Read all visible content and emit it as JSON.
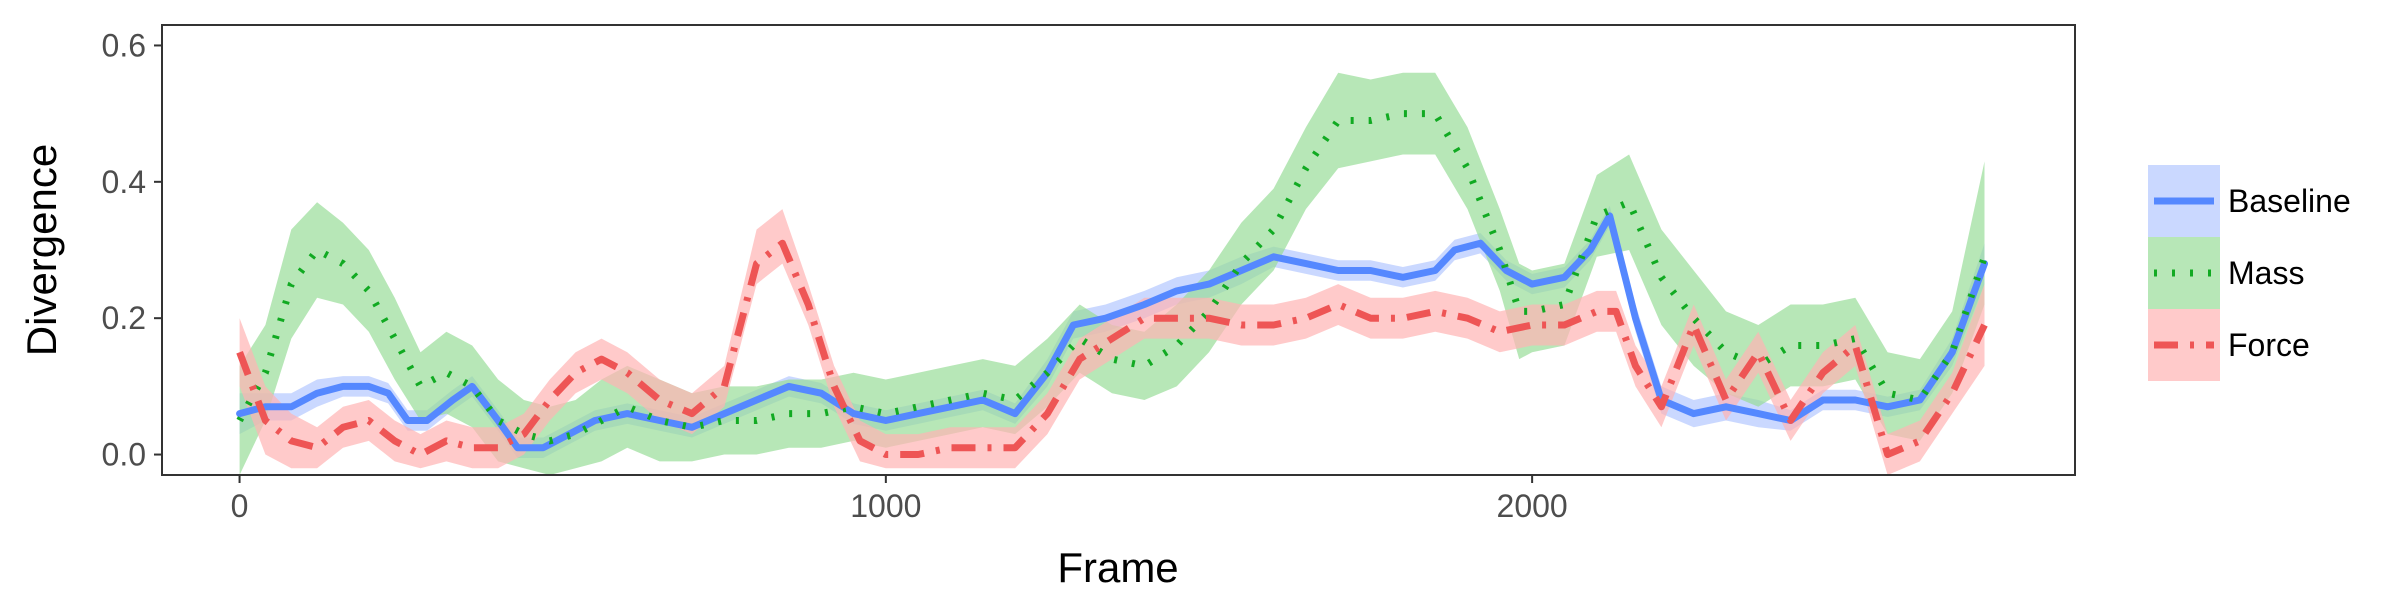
{
  "chart_data": {
    "type": "line",
    "title": "",
    "xlabel": "Frame",
    "ylabel": "Divergence",
    "xlim": [
      -120,
      2840
    ],
    "ylim": [
      -0.03,
      0.63
    ],
    "xticks": [
      0,
      1000,
      2000
    ],
    "xtick_labels": [
      "0",
      "1000",
      "2000"
    ],
    "yticks": [
      0.0,
      0.2,
      0.4,
      0.6
    ],
    "ytick_labels": [
      "0.0",
      "0.2",
      "0.4",
      "0.6"
    ],
    "grid": false,
    "legend_position": "right",
    "series": [
      {
        "name": "Baseline",
        "color": "#5588ff",
        "band_color": "#b3c8ff",
        "line_style": "solid",
        "points": [
          [
            0,
            0.06
          ],
          [
            40,
            0.07
          ],
          [
            80,
            0.07
          ],
          [
            120,
            0.09
          ],
          [
            160,
            0.1
          ],
          [
            200,
            0.1
          ],
          [
            230,
            0.09
          ],
          [
            260,
            0.05
          ],
          [
            290,
            0.05
          ],
          [
            330,
            0.08
          ],
          [
            360,
            0.1
          ],
          [
            400,
            0.05
          ],
          [
            430,
            0.01
          ],
          [
            470,
            0.01
          ],
          [
            510,
            0.03
          ],
          [
            550,
            0.05
          ],
          [
            600,
            0.06
          ],
          [
            650,
            0.05
          ],
          [
            700,
            0.04
          ],
          [
            750,
            0.06
          ],
          [
            800,
            0.08
          ],
          [
            850,
            0.1
          ],
          [
            900,
            0.09
          ],
          [
            950,
            0.06
          ],
          [
            1000,
            0.05
          ],
          [
            1050,
            0.06
          ],
          [
            1100,
            0.07
          ],
          [
            1150,
            0.08
          ],
          [
            1200,
            0.06
          ],
          [
            1250,
            0.12
          ],
          [
            1290,
            0.19
          ],
          [
            1340,
            0.2
          ],
          [
            1400,
            0.22
          ],
          [
            1450,
            0.24
          ],
          [
            1500,
            0.25
          ],
          [
            1550,
            0.27
          ],
          [
            1600,
            0.29
          ],
          [
            1650,
            0.28
          ],
          [
            1700,
            0.27
          ],
          [
            1750,
            0.27
          ],
          [
            1800,
            0.26
          ],
          [
            1850,
            0.27
          ],
          [
            1880,
            0.3
          ],
          [
            1920,
            0.31
          ],
          [
            1960,
            0.27
          ],
          [
            2000,
            0.25
          ],
          [
            2050,
            0.26
          ],
          [
            2090,
            0.3
          ],
          [
            2120,
            0.35
          ],
          [
            2160,
            0.2
          ],
          [
            2200,
            0.08
          ],
          [
            2250,
            0.06
          ],
          [
            2300,
            0.07
          ],
          [
            2350,
            0.06
          ],
          [
            2400,
            0.05
          ],
          [
            2450,
            0.08
          ],
          [
            2500,
            0.08
          ],
          [
            2550,
            0.07
          ],
          [
            2600,
            0.08
          ],
          [
            2650,
            0.15
          ],
          [
            2700,
            0.28
          ]
        ],
        "lower": [
          0.03,
          0.05,
          0.05,
          0.07,
          0.085,
          0.085,
          0.075,
          0.035,
          0.035,
          0.065,
          0.085,
          0.035,
          -0.005,
          -0.005,
          0.015,
          0.035,
          0.045,
          0.035,
          0.025,
          0.045,
          0.065,
          0.085,
          0.075,
          0.045,
          0.035,
          0.045,
          0.055,
          0.065,
          0.045,
          0.1,
          0.17,
          0.18,
          0.2,
          0.22,
          0.23,
          0.25,
          0.275,
          0.265,
          0.255,
          0.255,
          0.245,
          0.255,
          0.285,
          0.295,
          0.255,
          0.235,
          0.245,
          0.285,
          0.335,
          0.18,
          0.06,
          0.04,
          0.05,
          0.04,
          0.035,
          0.065,
          0.065,
          0.055,
          0.065,
          0.13,
          0.25
        ],
        "upper": [
          0.09,
          0.09,
          0.09,
          0.11,
          0.115,
          0.115,
          0.105,
          0.065,
          0.065,
          0.095,
          0.115,
          0.065,
          0.025,
          0.025,
          0.045,
          0.065,
          0.075,
          0.065,
          0.055,
          0.075,
          0.095,
          0.115,
          0.105,
          0.075,
          0.065,
          0.075,
          0.085,
          0.095,
          0.075,
          0.14,
          0.21,
          0.22,
          0.24,
          0.26,
          0.27,
          0.29,
          0.305,
          0.295,
          0.285,
          0.285,
          0.275,
          0.285,
          0.315,
          0.325,
          0.285,
          0.265,
          0.275,
          0.315,
          0.365,
          0.22,
          0.1,
          0.08,
          0.09,
          0.08,
          0.065,
          0.095,
          0.095,
          0.085,
          0.095,
          0.17,
          0.31
        ]
      },
      {
        "name": "Mass",
        "color": "#11aa22",
        "band_color": "#99dd99",
        "line_style": "dotted",
        "points": [
          [
            0,
            0.05
          ],
          [
            40,
            0.12
          ],
          [
            80,
            0.25
          ],
          [
            120,
            0.3
          ],
          [
            160,
            0.28
          ],
          [
            200,
            0.24
          ],
          [
            240,
            0.17
          ],
          [
            280,
            0.1
          ],
          [
            320,
            0.12
          ],
          [
            360,
            0.1
          ],
          [
            400,
            0.05
          ],
          [
            440,
            0.03
          ],
          [
            480,
            0.02
          ],
          [
            520,
            0.03
          ],
          [
            560,
            0.05
          ],
          [
            600,
            0.07
          ],
          [
            650,
            0.05
          ],
          [
            700,
            0.04
          ],
          [
            750,
            0.05
          ],
          [
            800,
            0.05
          ],
          [
            850,
            0.06
          ],
          [
            900,
            0.06
          ],
          [
            950,
            0.07
          ],
          [
            1000,
            0.06
          ],
          [
            1050,
            0.07
          ],
          [
            1100,
            0.08
          ],
          [
            1150,
            0.09
          ],
          [
            1200,
            0.08
          ],
          [
            1250,
            0.12
          ],
          [
            1300,
            0.17
          ],
          [
            1350,
            0.14
          ],
          [
            1400,
            0.13
          ],
          [
            1450,
            0.16
          ],
          [
            1500,
            0.21
          ],
          [
            1550,
            0.28
          ],
          [
            1600,
            0.33
          ],
          [
            1650,
            0.42
          ],
          [
            1700,
            0.49
          ],
          [
            1750,
            0.49
          ],
          [
            1800,
            0.5
          ],
          [
            1850,
            0.5
          ],
          [
            1900,
            0.42
          ],
          [
            1950,
            0.3
          ],
          [
            1980,
            0.21
          ],
          [
            2000,
            0.21
          ],
          [
            2050,
            0.22
          ],
          [
            2100,
            0.35
          ],
          [
            2150,
            0.37
          ],
          [
            2200,
            0.26
          ],
          [
            2250,
            0.2
          ],
          [
            2300,
            0.15
          ],
          [
            2350,
            0.13
          ],
          [
            2400,
            0.16
          ],
          [
            2450,
            0.16
          ],
          [
            2500,
            0.17
          ],
          [
            2550,
            0.09
          ],
          [
            2600,
            0.08
          ],
          [
            2650,
            0.15
          ],
          [
            2700,
            0.29
          ]
        ],
        "lower": [
          -0.03,
          0.05,
          0.17,
          0.23,
          0.22,
          0.18,
          0.11,
          0.05,
          0.06,
          0.04,
          -0.01,
          -0.02,
          -0.03,
          -0.02,
          -0.01,
          0.01,
          -0.01,
          -0.01,
          0.0,
          0.0,
          0.01,
          0.01,
          0.02,
          0.01,
          0.02,
          0.03,
          0.04,
          0.03,
          0.07,
          0.12,
          0.09,
          0.08,
          0.1,
          0.15,
          0.22,
          0.27,
          0.36,
          0.42,
          0.43,
          0.44,
          0.44,
          0.36,
          0.24,
          0.14,
          0.15,
          0.16,
          0.29,
          0.3,
          0.19,
          0.13,
          0.09,
          0.07,
          0.1,
          0.1,
          0.11,
          0.03,
          0.02,
          0.09,
          0.22
        ],
        "upper": [
          0.13,
          0.19,
          0.33,
          0.37,
          0.34,
          0.3,
          0.23,
          0.15,
          0.18,
          0.16,
          0.11,
          0.08,
          0.07,
          0.08,
          0.11,
          0.13,
          0.11,
          0.09,
          0.1,
          0.1,
          0.11,
          0.11,
          0.12,
          0.11,
          0.12,
          0.13,
          0.14,
          0.13,
          0.17,
          0.22,
          0.19,
          0.18,
          0.22,
          0.27,
          0.34,
          0.39,
          0.48,
          0.56,
          0.55,
          0.56,
          0.56,
          0.48,
          0.36,
          0.28,
          0.27,
          0.28,
          0.41,
          0.44,
          0.33,
          0.27,
          0.21,
          0.19,
          0.22,
          0.22,
          0.23,
          0.15,
          0.14,
          0.21,
          0.43
        ]
      },
      {
        "name": "Force",
        "color": "#ee5555",
        "band_color": "#ffb3b3",
        "line_style": "dashdot",
        "points": [
          [
            0,
            0.15
          ],
          [
            40,
            0.05
          ],
          [
            80,
            0.02
          ],
          [
            120,
            0.01
          ],
          [
            160,
            0.04
          ],
          [
            200,
            0.05
          ],
          [
            240,
            0.02
          ],
          [
            280,
            0.0
          ],
          [
            320,
            0.02
          ],
          [
            360,
            0.01
          ],
          [
            400,
            0.01
          ],
          [
            440,
            0.03
          ],
          [
            480,
            0.08
          ],
          [
            520,
            0.12
          ],
          [
            560,
            0.14
          ],
          [
            600,
            0.12
          ],
          [
            650,
            0.08
          ],
          [
            700,
            0.06
          ],
          [
            750,
            0.1
          ],
          [
            800,
            0.28
          ],
          [
            840,
            0.31
          ],
          [
            880,
            0.22
          ],
          [
            920,
            0.1
          ],
          [
            960,
            0.02
          ],
          [
            1000,
            0.0
          ],
          [
            1050,
            0.0
          ],
          [
            1100,
            0.01
          ],
          [
            1150,
            0.01
          ],
          [
            1200,
            0.01
          ],
          [
            1250,
            0.06
          ],
          [
            1300,
            0.14
          ],
          [
            1350,
            0.17
          ],
          [
            1400,
            0.2
          ],
          [
            1450,
            0.2
          ],
          [
            1500,
            0.2
          ],
          [
            1550,
            0.19
          ],
          [
            1600,
            0.19
          ],
          [
            1650,
            0.2
          ],
          [
            1700,
            0.22
          ],
          [
            1750,
            0.2
          ],
          [
            1800,
            0.2
          ],
          [
            1850,
            0.21
          ],
          [
            1900,
            0.2
          ],
          [
            1950,
            0.18
          ],
          [
            2000,
            0.19
          ],
          [
            2050,
            0.19
          ],
          [
            2100,
            0.21
          ],
          [
            2130,
            0.21
          ],
          [
            2160,
            0.13
          ],
          [
            2200,
            0.07
          ],
          [
            2250,
            0.19
          ],
          [
            2300,
            0.08
          ],
          [
            2350,
            0.15
          ],
          [
            2400,
            0.05
          ],
          [
            2450,
            0.12
          ],
          [
            2500,
            0.16
          ],
          [
            2550,
            0.0
          ],
          [
            2600,
            0.02
          ],
          [
            2650,
            0.09
          ],
          [
            2700,
            0.19
          ]
        ],
        "lower": [
          0.1,
          0.0,
          -0.02,
          -0.02,
          0.01,
          0.02,
          -0.01,
          -0.02,
          -0.01,
          -0.02,
          -0.02,
          0.0,
          0.05,
          0.09,
          0.11,
          0.09,
          0.05,
          0.03,
          0.07,
          0.25,
          0.28,
          0.19,
          0.07,
          -0.01,
          -0.02,
          -0.02,
          -0.02,
          -0.02,
          -0.02,
          0.03,
          0.11,
          0.14,
          0.17,
          0.17,
          0.17,
          0.16,
          0.16,
          0.17,
          0.19,
          0.17,
          0.17,
          0.18,
          0.17,
          0.15,
          0.16,
          0.16,
          0.18,
          0.18,
          0.1,
          0.04,
          0.16,
          0.05,
          0.12,
          0.02,
          0.09,
          0.13,
          -0.03,
          -0.01,
          0.06,
          0.13
        ],
        "upper": [
          0.2,
          0.1,
          0.06,
          0.04,
          0.07,
          0.08,
          0.05,
          0.03,
          0.05,
          0.04,
          0.04,
          0.06,
          0.11,
          0.15,
          0.17,
          0.15,
          0.11,
          0.09,
          0.13,
          0.33,
          0.36,
          0.25,
          0.13,
          0.05,
          0.03,
          0.03,
          0.04,
          0.04,
          0.04,
          0.09,
          0.17,
          0.2,
          0.23,
          0.23,
          0.23,
          0.22,
          0.22,
          0.23,
          0.25,
          0.23,
          0.23,
          0.24,
          0.23,
          0.21,
          0.22,
          0.22,
          0.24,
          0.24,
          0.16,
          0.1,
          0.22,
          0.11,
          0.18,
          0.08,
          0.15,
          0.19,
          0.03,
          0.05,
          0.12,
          0.25
        ]
      }
    ]
  }
}
